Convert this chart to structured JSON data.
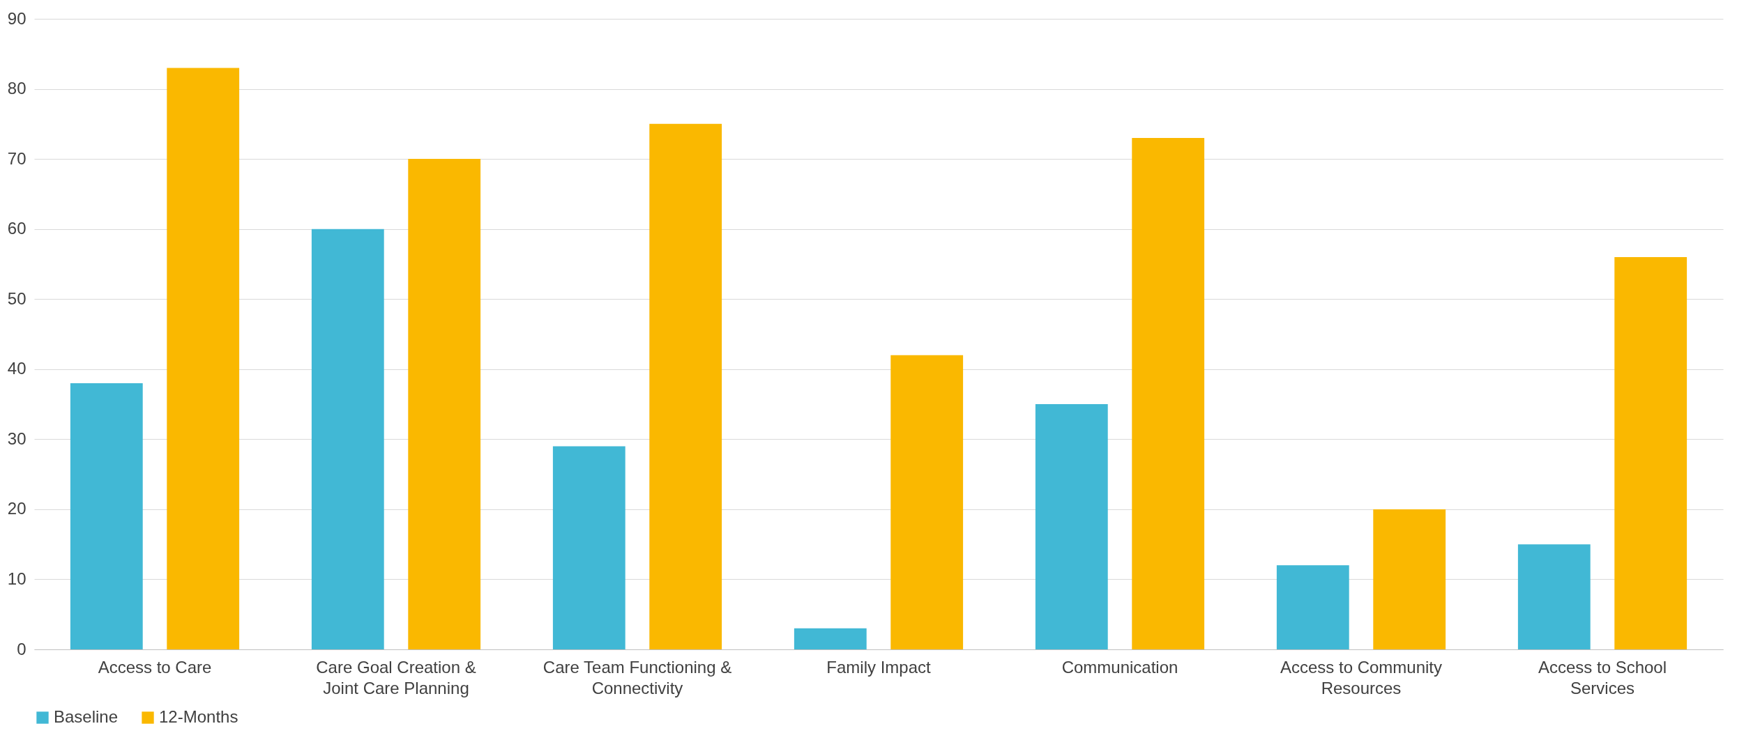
{
  "chart_data": {
    "type": "bar",
    "categories": [
      "Access to Care",
      "Care Goal Creation & Joint Care Planning",
      "Care Team Functioning & Connectivity",
      "Family Impact",
      "Communication",
      "Access to Community Resources",
      "Access to School Services"
    ],
    "series": [
      {
        "name": "Baseline",
        "color": "#41b8d5",
        "values": [
          38,
          60,
          29,
          3,
          35,
          12,
          15
        ]
      },
      {
        "name": "12-Months",
        "color": "#fab800",
        "values": [
          83,
          70,
          75,
          42,
          73,
          20,
          56
        ]
      }
    ],
    "ylim": [
      0,
      90
    ],
    "yticks": [
      0,
      10,
      20,
      30,
      40,
      50,
      60,
      70,
      80,
      90
    ],
    "grid": "y",
    "legend": "bottom"
  }
}
